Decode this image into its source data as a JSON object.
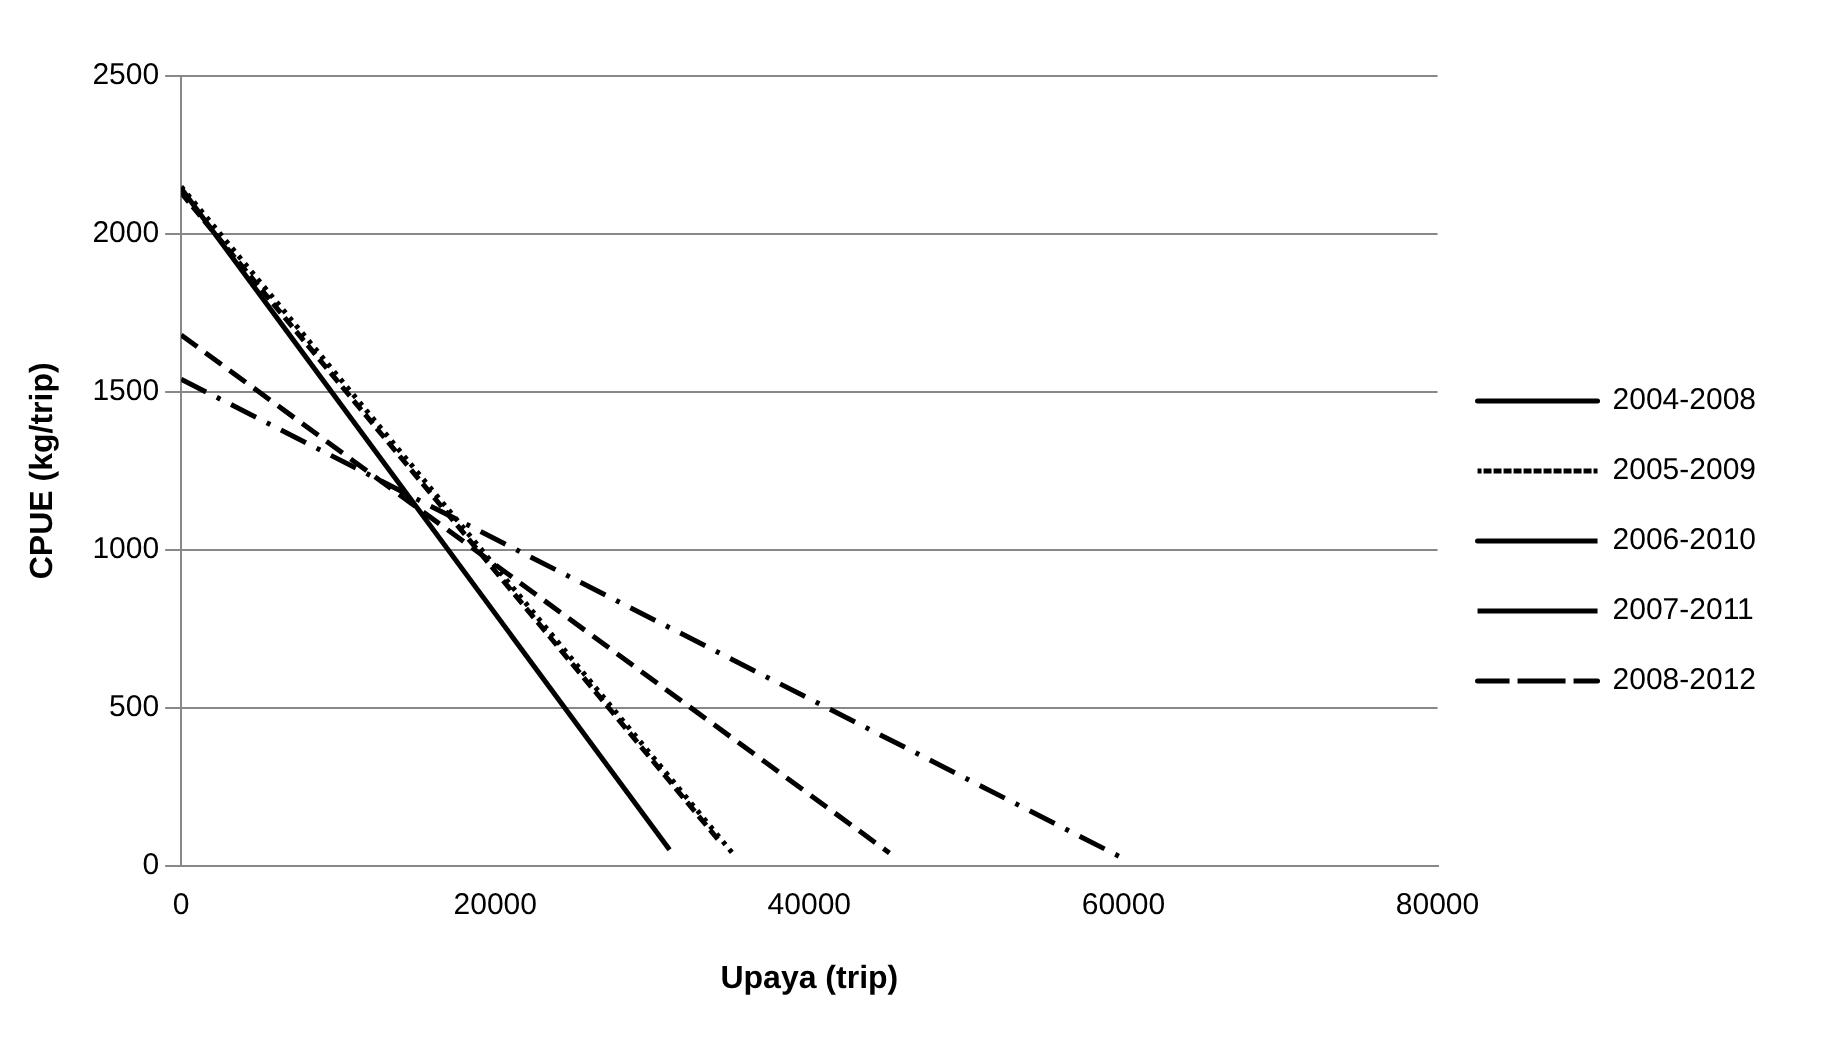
{
  "chart_data": {
    "type": "line",
    "xlabel": "Upaya (trip)",
    "ylabel": "CPUE (kg/trip)",
    "xlim": [
      0,
      80000
    ],
    "xticks": [
      0,
      {
        "value": 20000,
        "label": "20000"
      },
      {
        "value": 40000,
        "label": "40000"
      },
      {
        "value": 60000,
        "label": "60000"
      },
      {
        "value": 80000,
        "label": "80000"
      }
    ],
    "ylim": [
      0,
      2500
    ],
    "yticks": [
      0,
      500,
      {
        "value": 1000,
        "label": "1000"
      },
      {
        "value": 1500,
        "label": "1500"
      },
      {
        "value": 2000,
        "label": "2000"
      },
      {
        "value": 2500,
        "label": "2500"
      }
    ],
    "grid": "y",
    "legend": "right",
    "marker": "none",
    "series": [
      {
        "name": "2004-2008",
        "color": "#000000",
        "line_style": "solid",
        "x": [
          0,
          31100
        ],
        "values": [
          2145,
          50
        ]
      },
      {
        "name": "2005-2009",
        "color": "#000000",
        "line_style": "dotted",
        "x": [
          0,
          35100
        ],
        "values": [
          2150,
          40
        ]
      },
      {
        "name": "2006-2010",
        "color": "#000000",
        "line_style": "dashed",
        "x": [
          0,
          34400
        ],
        "values": [
          2130,
          70
        ]
      },
      {
        "name": "2007-2011",
        "color": "#000000",
        "line_style": "long_dashed",
        "x": [
          0,
          45100
        ],
        "values": [
          1680,
          40
        ]
      },
      {
        "name": "2008-2012",
        "color": "#000000",
        "line_style": "dash_dot",
        "x": [
          0,
          59900
        ],
        "values": [
          1540,
          25
        ]
      }
    ]
  }
}
